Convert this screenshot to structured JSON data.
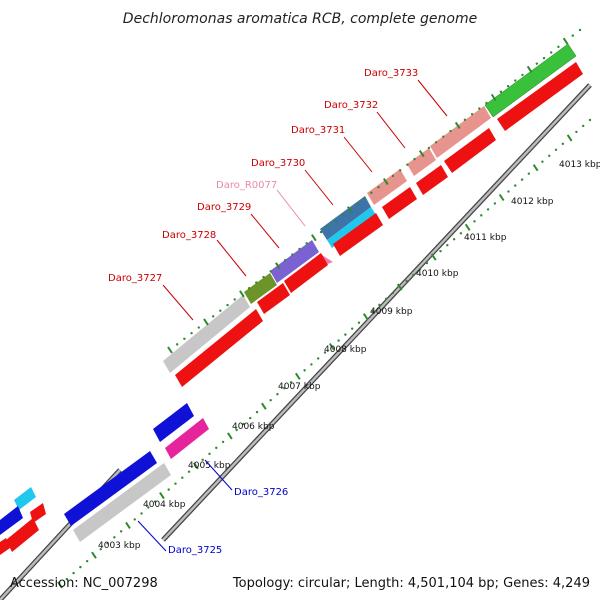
{
  "title": "Dechloromonas aromatica RCB, complete genome",
  "footer": {
    "accession": "Accession: NC_007298",
    "topology": "Topology: circular; Length: 4,501,104 bp; Genes: 4,249"
  },
  "colors": {
    "backbone": "#9a9a9a",
    "tick_major": "#2e8a2e",
    "tick_minor": "#1f6f1f",
    "label_red": "#cc0000",
    "label_pink": "#e88aa8",
    "label_blue": "#0000cc"
  },
  "kbp_labels": [
    "4003 kbp",
    "4004 kbp",
    "4005 kbp",
    "4006 kbp",
    "4007 kbp",
    "4008 kbp",
    "4009 kbp",
    "4010 kbp",
    "4011 kbp",
    "4012 kbp",
    "4013 kbp"
  ],
  "gene_labels": [
    {
      "text": "Daro_3733",
      "color": "red"
    },
    {
      "text": "Daro_3732",
      "color": "red"
    },
    {
      "text": "Daro_3731",
      "color": "red"
    },
    {
      "text": "Daro_3730",
      "color": "red"
    },
    {
      "text": "Daro_R0077",
      "color": "pink"
    },
    {
      "text": "Daro_3729",
      "color": "red"
    },
    {
      "text": "Daro_3728",
      "color": "red"
    },
    {
      "text": "Daro_3727",
      "color": "red"
    },
    {
      "text": "Daro_3726",
      "color": "blue"
    },
    {
      "text": "Daro_3725",
      "color": "blue"
    }
  ]
}
